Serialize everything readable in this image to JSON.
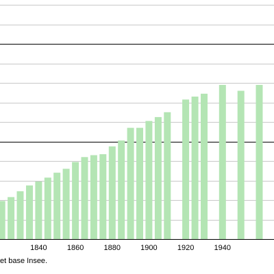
{
  "chart_data": {
    "type": "bar",
    "x": [
      1820,
      1825,
      1830,
      1835,
      1840,
      1845,
      1850,
      1855,
      1860,
      1865,
      1870,
      1875,
      1880,
      1885,
      1890,
      1895,
      1900,
      1905,
      1910,
      1920,
      1925,
      1930,
      1940,
      1950,
      1960
    ],
    "values": [
      1950,
      2150,
      2450,
      2750,
      2950,
      3150,
      3400,
      3600,
      3950,
      4200,
      4300,
      4350,
      4750,
      5050,
      5700,
      5700,
      6050,
      6250,
      6500,
      7150,
      7300,
      7450,
      7900,
      7600,
      7900
    ],
    "ylim": [
      0,
      12250
    ],
    "xlim": [
      1819,
      1968
    ],
    "x_ticks": [
      "1840",
      "1860",
      "1880",
      "1900",
      "1920",
      "1940"
    ],
    "grid": "horizontal",
    "colors": {
      "bar": "#b4e5b4",
      "grid_minor": "#c8c8c8",
      "grid_major": "#000000"
    }
  },
  "source_note": "et base Insee."
}
